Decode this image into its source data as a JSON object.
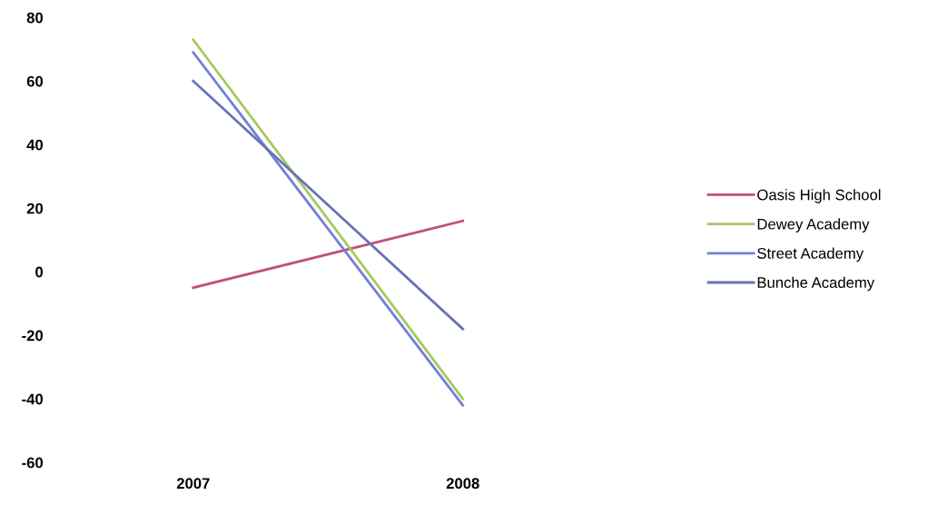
{
  "chart_data": {
    "type": "line",
    "categories": [
      "2007",
      "2008"
    ],
    "series": [
      {
        "name": "Oasis High School",
        "color": "#c0507a",
        "values": [
          -5,
          16
        ]
      },
      {
        "name": "Dewey Academy",
        "color": "#a8c860",
        "values": [
          73,
          -40
        ]
      },
      {
        "name": "Street Academy",
        "color": "#7080d8",
        "values": [
          69,
          -42
        ]
      },
      {
        "name": "Bunche Academy",
        "color": "#6a72b4",
        "values": [
          60,
          -18
        ]
      }
    ],
    "ylim": [
      -60,
      80
    ],
    "yticks": [
      -60,
      -40,
      -20,
      0,
      20,
      40,
      60,
      80
    ],
    "grid": false,
    "legend": "right",
    "marker": "none",
    "line_style": "solid"
  }
}
